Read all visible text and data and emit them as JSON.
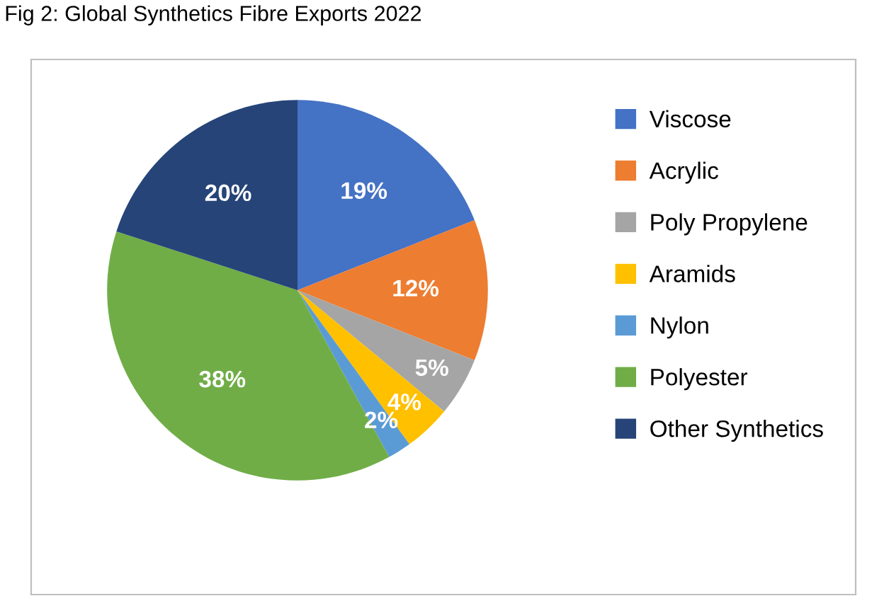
{
  "chart_data": {
    "type": "pie",
    "title": "Fig 2: Global Synthetics Fibre Exports 2022",
    "categories": [
      "Viscose",
      "Acrylic",
      "Poly Propylene",
      "Aramids",
      "Nylon",
      "Polyester",
      "Other Synthetics"
    ],
    "values": [
      19,
      12,
      5,
      4,
      2,
      38,
      20
    ],
    "colors": [
      "#4472c4",
      "#ed7d31",
      "#a5a5a5",
      "#ffc000",
      "#5b9bd5",
      "#70ad47",
      "#264478"
    ],
    "value_labels": [
      "19%",
      "12%",
      "5%",
      "4%",
      "2%",
      "38%",
      "20%"
    ],
    "legend": "right"
  }
}
